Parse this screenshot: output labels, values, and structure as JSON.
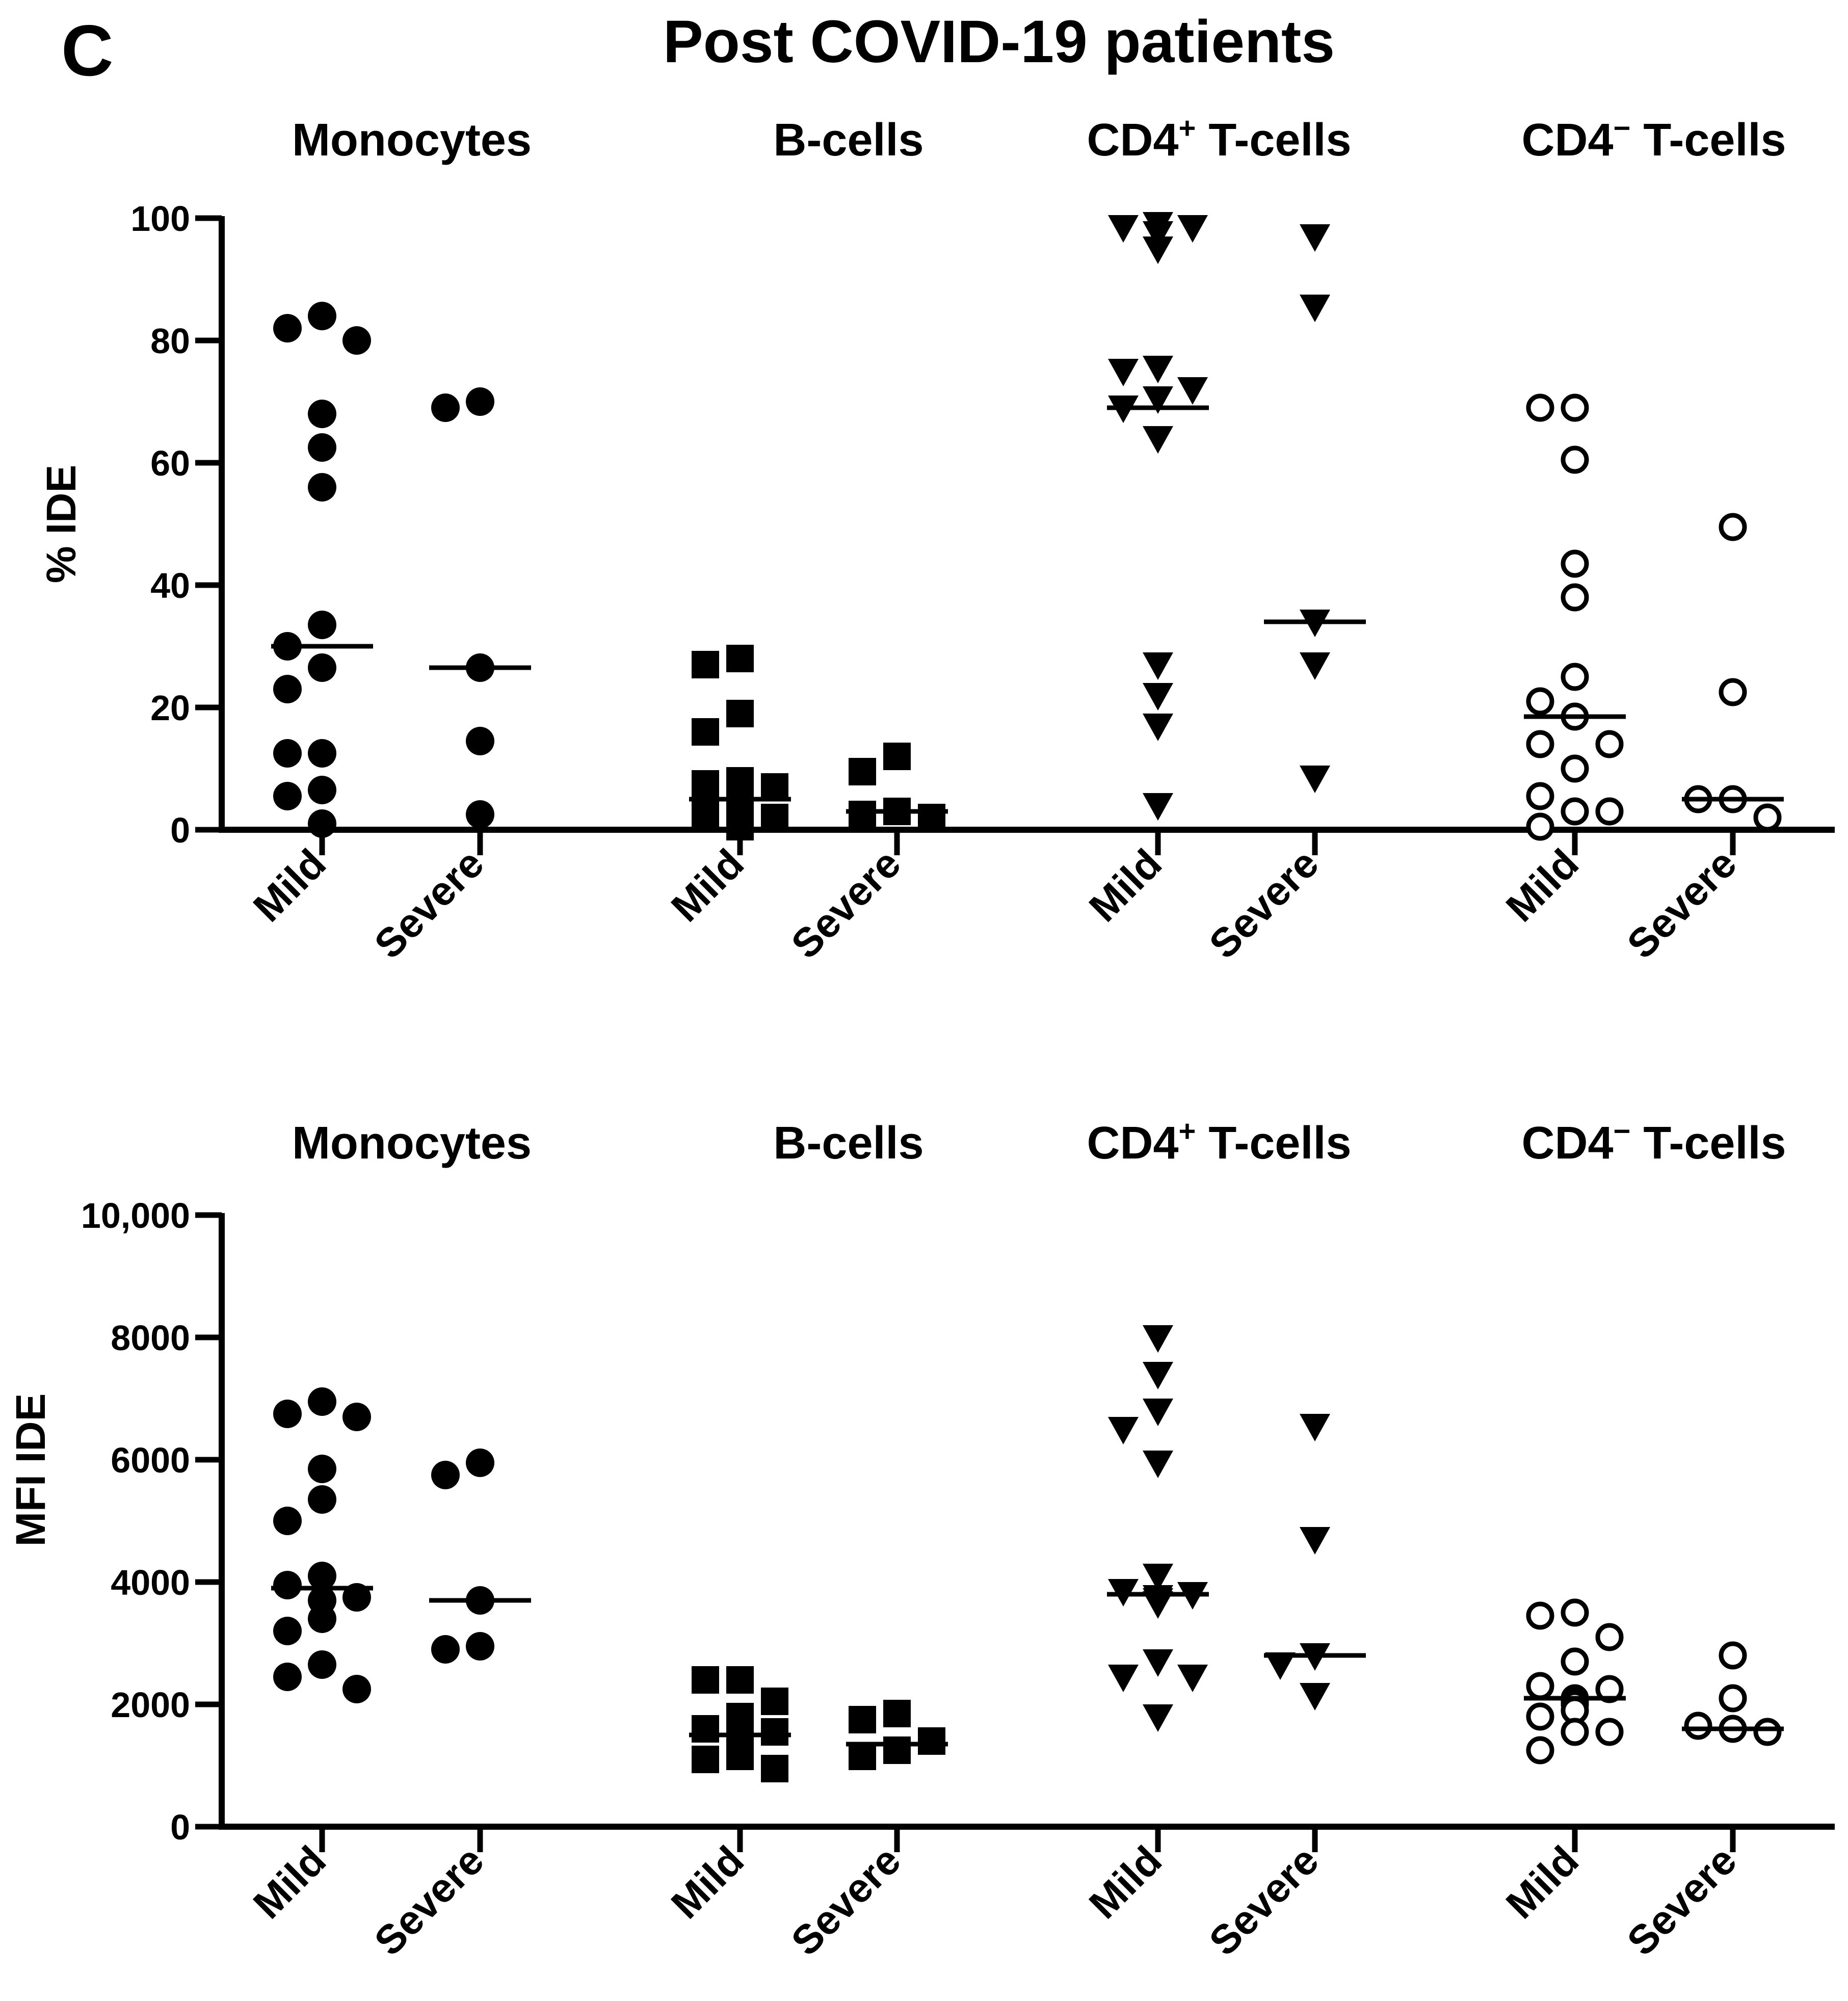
{
  "figure": {
    "panel_letter": "C",
    "title": "Post COVID-19 patients"
  },
  "chart_data": [
    {
      "type": "scatter",
      "ylabel": "% IDE",
      "ylim": [
        0,
        100
      ],
      "yticks": [
        "0",
        "20",
        "40",
        "60",
        "80",
        "100"
      ],
      "groups": [
        {
          "title": "Monocytes",
          "marker": "circle",
          "mild": {
            "label": "Mild",
            "median": 30,
            "values": [
              84,
              80,
              82,
              68,
              62.5,
              56,
              33.5,
              26.5,
              30,
              23,
              12.5,
              12.5,
              6.5,
              5.5,
              1
            ]
          },
          "severe": {
            "label": "Severe",
            "median": 26.5,
            "values": [
              70,
              69,
              26.5,
              14.5,
              2.5
            ]
          }
        },
        {
          "title": "B-cells",
          "marker": "square",
          "mild": {
            "label": "Mild",
            "median": 5,
            "values": [
              28,
              27,
              19,
              16,
              8,
              7.5,
              7,
              6,
              5,
              4.5,
              4,
              3,
              2.5,
              2,
              1,
              0.5
            ]
          },
          "severe": {
            "label": "Severe",
            "median": 3,
            "values": [
              12,
              9.5,
              3,
              2.5,
              2
            ]
          }
        },
        {
          "title": "CD4",
          "title_sup": "+",
          "title_rest": " T-cells",
          "marker": "triangle",
          "mild": {
            "label": "Mild",
            "median": 69,
            "values": [
              98.5,
              98.5,
              95,
              97.5,
              99,
              75.5,
              75,
              72,
              70.5,
              69,
              64,
              27,
              22,
              17,
              4
            ]
          },
          "severe": {
            "label": "Severe",
            "median": 34,
            "values": [
              97,
              85.5,
              34,
              27,
              8.5
            ]
          }
        },
        {
          "title": "CD4",
          "title_sup": "−",
          "title_rest": " T-cells",
          "marker": "open-circle",
          "mild": {
            "label": "Mild",
            "median": 18.5,
            "values": [
              69,
              69,
              60.5,
              43.5,
              38,
              25,
              21,
              18.5,
              14,
              14,
              10,
              5.5,
              3,
              3,
              0.5
            ]
          },
          "severe": {
            "label": "Severe",
            "median": 5,
            "values": [
              49.5,
              22.5,
              5,
              5,
              2
            ]
          }
        }
      ]
    },
    {
      "type": "scatter",
      "ylabel": "MFI IDE",
      "ylim": [
        0,
        10000
      ],
      "yticks": [
        "0",
        "2000",
        "4000",
        "6000",
        "8000",
        "10,000"
      ],
      "groups": [
        {
          "title": "Monocytes",
          "marker": "circle",
          "mild": {
            "label": "Mild",
            "median": 3900,
            "values": [
              6950,
              6700,
              6750,
              5850,
              5350,
              5000,
              4100,
              3950,
              3750,
              3700,
              3400,
              3200,
              2650,
              2450,
              2250
            ]
          },
          "severe": {
            "label": "Severe",
            "median": 3700,
            "values": [
              5950,
              5750,
              3700,
              2950,
              2900
            ]
          }
        },
        {
          "title": "B-cells",
          "marker": "square",
          "mild": {
            "label": "Mild",
            "median": 1500,
            "values": [
              2400,
              2400,
              2050,
              1800,
              1600,
              1550,
              1500,
              1450,
              1400,
              1350,
              1300,
              1200,
              1150,
              1100,
              950
            ]
          },
          "severe": {
            "label": "Severe",
            "median": 1350,
            "values": [
              1850,
              1750,
              1400,
              1250,
              1150
            ]
          }
        },
        {
          "title": "CD4",
          "title_sup": "+",
          "title_rest": " T-cells",
          "marker": "triangle",
          "mild": {
            "label": "Mild",
            "median": 3800,
            "values": [
              8000,
              7400,
              6800,
              6500,
              5950,
              4100,
              3850,
              3800,
              3750,
              3700,
              3650,
              2700,
              2450,
              2450,
              1800
            ]
          },
          "severe": {
            "label": "Severe",
            "median": 2800,
            "values": [
              6550,
              4700,
              2800,
              2650,
              2150
            ]
          }
        },
        {
          "title": "CD4",
          "title_sup": "−",
          "title_rest": " T-cells",
          "marker": "open-circle",
          "mild": {
            "label": "Mild",
            "median": 2100,
            "values": [
              3500,
              3450,
              3100,
              2700,
              2300,
              2250,
              2100,
              2050,
              2000,
              1900,
              1800,
              1550,
              1550,
              1250
            ]
          },
          "severe": {
            "label": "Severe",
            "median": 1600,
            "values": [
              2800,
              2100,
              1650,
              1600,
              1550
            ]
          }
        }
      ]
    }
  ]
}
